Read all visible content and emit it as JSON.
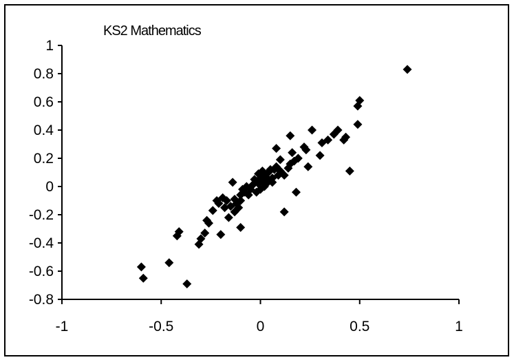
{
  "chart_data": {
    "type": "scatter",
    "title": "KS2 Mathematics",
    "xlabel": "",
    "ylabel": "",
    "xlim": [
      -1,
      1
    ],
    "ylim": [
      -0.8,
      1
    ],
    "xticks": [
      -1,
      -0.5,
      0,
      0.5,
      1
    ],
    "yticks": [
      1,
      0.8,
      0.6,
      0.4,
      0.2,
      0,
      -0.2,
      -0.4,
      -0.6,
      -0.8
    ],
    "xtick_labels": [
      "-1",
      "-0.5",
      "0",
      "0.5",
      "1"
    ],
    "ytick_labels": [
      "1",
      "0.8",
      "0.6",
      "0.4",
      "0.2",
      "0",
      "-0.2",
      "-0.4",
      "-0.6",
      "-0.8"
    ],
    "grid": false,
    "legend": false,
    "marker": "diamond",
    "marker_color": "#000000",
    "points": [
      [
        0.74,
        0.83
      ],
      [
        0.5,
        0.61
      ],
      [
        0.49,
        0.57
      ],
      [
        0.49,
        0.44
      ],
      [
        0.45,
        0.11
      ],
      [
        0.43,
        0.35
      ],
      [
        0.42,
        0.33
      ],
      [
        0.39,
        0.4
      ],
      [
        0.37,
        0.37
      ],
      [
        0.34,
        0.33
      ],
      [
        0.31,
        0.31
      ],
      [
        0.3,
        0.22
      ],
      [
        0.26,
        0.4
      ],
      [
        0.24,
        0.14
      ],
      [
        0.23,
        0.26
      ],
      [
        0.22,
        0.28
      ],
      [
        0.19,
        0.2
      ],
      [
        0.18,
        -0.04
      ],
      [
        0.17,
        0.18
      ],
      [
        0.16,
        0.24
      ],
      [
        0.15,
        0.36
      ],
      [
        0.15,
        0.16
      ],
      [
        0.14,
        0.13
      ],
      [
        0.12,
        0.08
      ],
      [
        0.12,
        -0.18
      ],
      [
        0.1,
        0.19
      ],
      [
        0.1,
        0.11
      ],
      [
        0.09,
        0.08
      ],
      [
        0.08,
        0.27
      ],
      [
        0.08,
        0.14
      ],
      [
        0.07,
        0.12
      ],
      [
        0.06,
        0.06
      ],
      [
        0.06,
        0.03
      ],
      [
        0.05,
        0.12
      ],
      [
        0.04,
        0.1
      ],
      [
        0.04,
        0.05
      ],
      [
        0.03,
        0.02
      ],
      [
        0.02,
        0.08
      ],
      [
        0.02,
        0.0
      ],
      [
        0.01,
        0.11
      ],
      [
        0.01,
        0.04
      ],
      [
        0.0,
        0.06
      ],
      [
        0.0,
        -0.02
      ],
      [
        -0.01,
        0.09
      ],
      [
        -0.01,
        0.02
      ],
      [
        -0.02,
        -0.04
      ],
      [
        -0.03,
        0.05
      ],
      [
        -0.04,
        0.01
      ],
      [
        -0.05,
        -0.02
      ],
      [
        -0.06,
        -0.06
      ],
      [
        -0.07,
        0.0
      ],
      [
        -0.08,
        -0.04
      ],
      [
        -0.09,
        -0.02
      ],
      [
        -0.1,
        -0.06
      ],
      [
        -0.1,
        -0.1
      ],
      [
        -0.11,
        -0.15
      ],
      [
        -0.1,
        -0.29
      ],
      [
        -0.12,
        -0.12
      ],
      [
        -0.13,
        -0.09
      ],
      [
        -0.13,
        -0.18
      ],
      [
        -0.14,
        0.03
      ],
      [
        -0.15,
        -0.14
      ],
      [
        -0.16,
        -0.22
      ],
      [
        -0.17,
        -0.1
      ],
      [
        -0.18,
        -0.15
      ],
      [
        -0.19,
        -0.08
      ],
      [
        -0.2,
        -0.34
      ],
      [
        -0.21,
        -0.12
      ],
      [
        -0.22,
        -0.1
      ],
      [
        -0.24,
        -0.17
      ],
      [
        -0.26,
        -0.26
      ],
      [
        -0.27,
        -0.24
      ],
      [
        -0.28,
        -0.33
      ],
      [
        -0.3,
        -0.37
      ],
      [
        -0.31,
        -0.41
      ],
      [
        -0.41,
        -0.32
      ],
      [
        -0.42,
        -0.35
      ],
      [
        -0.46,
        -0.54
      ],
      [
        -0.6,
        -0.57
      ],
      [
        -0.59,
        -0.65
      ],
      [
        -0.37,
        -0.69
      ]
    ]
  }
}
